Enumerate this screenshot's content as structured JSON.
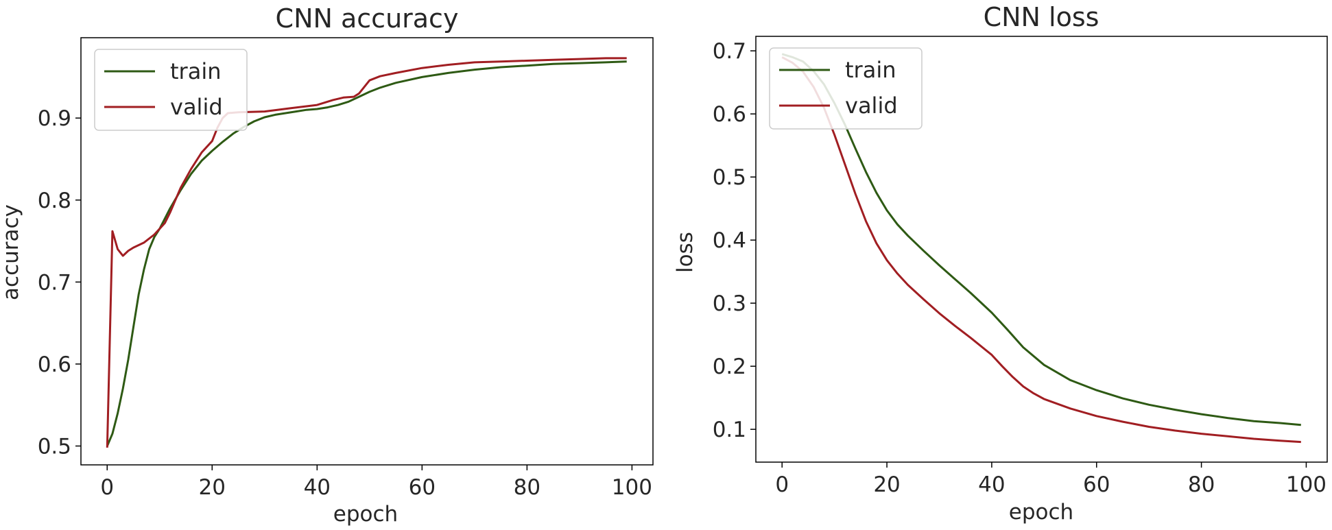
{
  "chart_data": [
    {
      "type": "line",
      "title": "CNN accuracy",
      "xlabel": "epoch",
      "ylabel": "accuracy",
      "xlim": [
        -5,
        104
      ],
      "ylim": [
        0.477,
        0.998
      ],
      "xticks": [
        0,
        20,
        40,
        60,
        80,
        100
      ],
      "yticks": [
        0.5,
        0.6,
        0.7,
        0.8,
        0.9
      ],
      "xtick_labels": [
        "0",
        "20",
        "40",
        "60",
        "80",
        "100"
      ],
      "ytick_labels": [
        "0.5",
        "0.6",
        "0.7",
        "0.8",
        "0.9"
      ],
      "grid": false,
      "legend_position": "top-left",
      "series": [
        {
          "name": "train",
          "color": "#2e5a14",
          "x": [
            0,
            1,
            2,
            3,
            4,
            5,
            6,
            7,
            8,
            9,
            10,
            12,
            14,
            16,
            18,
            20,
            22,
            24,
            26,
            28,
            30,
            32,
            34,
            36,
            38,
            40,
            42,
            44,
            46,
            48,
            50,
            52,
            55,
            60,
            65,
            70,
            75,
            80,
            85,
            90,
            95,
            99
          ],
          "y": [
            0.5,
            0.515,
            0.54,
            0.57,
            0.605,
            0.645,
            0.685,
            0.715,
            0.74,
            0.755,
            0.765,
            0.79,
            0.812,
            0.832,
            0.848,
            0.86,
            0.871,
            0.881,
            0.889,
            0.896,
            0.901,
            0.904,
            0.906,
            0.908,
            0.91,
            0.911,
            0.913,
            0.916,
            0.92,
            0.926,
            0.932,
            0.937,
            0.943,
            0.95,
            0.955,
            0.959,
            0.962,
            0.964,
            0.966,
            0.967,
            0.968,
            0.969
          ]
        },
        {
          "name": "valid",
          "color": "#a11e22",
          "x": [
            0,
            1,
            2,
            3,
            4,
            5,
            7,
            9,
            11,
            12,
            14,
            16,
            18,
            20,
            21,
            22,
            23,
            25,
            30,
            35,
            40,
            43,
            45,
            47,
            48,
            49,
            50,
            52,
            55,
            60,
            65,
            70,
            75,
            80,
            85,
            90,
            95,
            99
          ],
          "y": [
            0.498,
            0.762,
            0.74,
            0.732,
            0.738,
            0.742,
            0.748,
            0.758,
            0.772,
            0.785,
            0.815,
            0.838,
            0.858,
            0.872,
            0.888,
            0.9,
            0.906,
            0.907,
            0.908,
            0.912,
            0.916,
            0.922,
            0.925,
            0.926,
            0.93,
            0.938,
            0.946,
            0.951,
            0.955,
            0.961,
            0.965,
            0.968,
            0.969,
            0.97,
            0.971,
            0.972,
            0.973,
            0.973
          ]
        }
      ]
    },
    {
      "type": "line",
      "title": "CNN loss",
      "xlabel": "epoch",
      "ylabel": "loss",
      "xlim": [
        -5,
        104
      ],
      "ylim": [
        0.048,
        0.723
      ],
      "xticks": [
        0,
        20,
        40,
        60,
        80,
        100
      ],
      "yticks": [
        0.1,
        0.2,
        0.3,
        0.4,
        0.5,
        0.6,
        0.7
      ],
      "xtick_labels": [
        "0",
        "20",
        "40",
        "60",
        "80",
        "100"
      ],
      "ytick_labels": [
        "0.1",
        "0.2",
        "0.3",
        "0.4",
        "0.5",
        "0.6",
        "0.7"
      ],
      "grid": false,
      "legend_position": "top-left",
      "series": [
        {
          "name": "train",
          "color": "#2e5a14",
          "x": [
            0,
            2,
            4,
            6,
            8,
            10,
            12,
            14,
            16,
            18,
            20,
            22,
            24,
            27,
            30,
            33,
            36,
            40,
            43,
            46,
            50,
            55,
            60,
            65,
            70,
            75,
            80,
            85,
            90,
            95,
            99
          ],
          "y": [
            0.695,
            0.69,
            0.683,
            0.668,
            0.647,
            0.617,
            0.583,
            0.545,
            0.508,
            0.475,
            0.447,
            0.425,
            0.407,
            0.383,
            0.36,
            0.338,
            0.316,
            0.285,
            0.258,
            0.23,
            0.202,
            0.178,
            0.162,
            0.149,
            0.139,
            0.131,
            0.124,
            0.118,
            0.113,
            0.11,
            0.107
          ]
        },
        {
          "name": "valid",
          "color": "#a11e22",
          "x": [
            0,
            2,
            4,
            6,
            8,
            10,
            12,
            14,
            16,
            18,
            20,
            22,
            24,
            27,
            30,
            33,
            36,
            40,
            42,
            44,
            46,
            48,
            50,
            55,
            60,
            65,
            70,
            75,
            80,
            85,
            90,
            95,
            99
          ],
          "y": [
            0.69,
            0.681,
            0.667,
            0.643,
            0.61,
            0.567,
            0.52,
            0.473,
            0.43,
            0.395,
            0.368,
            0.347,
            0.329,
            0.306,
            0.284,
            0.264,
            0.245,
            0.218,
            0.2,
            0.183,
            0.168,
            0.157,
            0.148,
            0.133,
            0.121,
            0.112,
            0.104,
            0.098,
            0.093,
            0.089,
            0.085,
            0.082,
            0.08
          ]
        }
      ]
    }
  ]
}
